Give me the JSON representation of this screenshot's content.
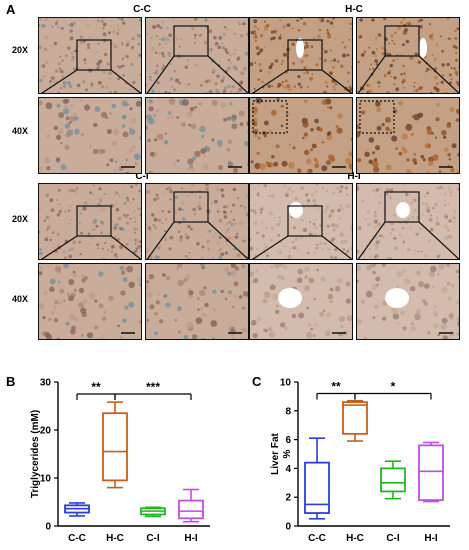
{
  "panel_a": {
    "letter": "A",
    "groups": [
      {
        "title": "C-C",
        "stain": "light"
      },
      {
        "title": "H-C",
        "stain": "dark"
      },
      {
        "title": "C-I",
        "stain": "light"
      },
      {
        "title": "H-I",
        "stain": "pale"
      }
    ],
    "magnifications": {
      "low": "20X",
      "high": "40X"
    }
  },
  "panel_b": {
    "letter": "B",
    "chart_data": {
      "type": "box",
      "ylabel": "Triglycerides (mM)",
      "ylim": [
        0,
        30
      ],
      "yticks": [
        0,
        10,
        20,
        30
      ],
      "categories": [
        "C-C",
        "H-C",
        "C-I",
        "H-I"
      ],
      "colors": [
        "#2b3fd8",
        "#c0621d",
        "#1fb81f",
        "#c04ee0"
      ],
      "boxes": [
        {
          "min": 2.1,
          "q1": 2.8,
          "median": 3.6,
          "q3": 4.3,
          "max": 4.8
        },
        {
          "min": 8.0,
          "q1": 9.5,
          "median": 15.5,
          "q3": 23.5,
          "max": 25.8
        },
        {
          "min": 2.0,
          "q1": 2.4,
          "median": 3.1,
          "q3": 3.7,
          "max": 3.9
        },
        {
          "min": 0.9,
          "q1": 1.6,
          "median": 3.1,
          "q3": 5.3,
          "max": 7.6
        }
      ],
      "significance": [
        {
          "from": 0,
          "to": 1,
          "label": "**",
          "y": 27.5
        },
        {
          "from": 1,
          "to": 3,
          "label": "***",
          "y": 27.5
        }
      ]
    }
  },
  "panel_c": {
    "letter": "C",
    "chart_data": {
      "type": "box",
      "ylabel": "Liver Fat %",
      "ylim": [
        0,
        10
      ],
      "yticks": [
        0,
        2,
        4,
        6,
        8,
        10
      ],
      "categories": [
        "C-C",
        "H-C",
        "C-I",
        "H-I"
      ],
      "colors": [
        "#2b3fd8",
        "#c0621d",
        "#1fb81f",
        "#c04ee0"
      ],
      "boxes": [
        {
          "min": 0.5,
          "q1": 0.9,
          "median": 1.5,
          "q3": 4.4,
          "max": 6.1
        },
        {
          "min": 5.9,
          "q1": 6.4,
          "median": 8.4,
          "q3": 8.6,
          "max": 8.7
        },
        {
          "min": 1.9,
          "q1": 2.4,
          "median": 3.0,
          "q3": 4.0,
          "max": 4.5
        },
        {
          "min": 1.7,
          "q1": 1.8,
          "median": 3.8,
          "q3": 5.6,
          "max": 5.8
        }
      ],
      "significance": [
        {
          "from": 0,
          "to": 1,
          "label": "**",
          "y": 9.2
        },
        {
          "from": 1,
          "to": 3,
          "label": "*",
          "y": 9.2
        }
      ]
    }
  }
}
